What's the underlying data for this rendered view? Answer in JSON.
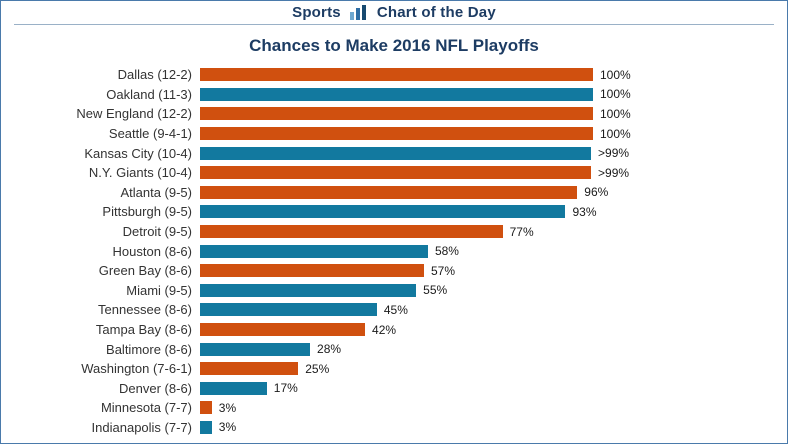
{
  "header": {
    "brand": "Sports",
    "tagline": "Chart of the Day"
  },
  "chart_data": {
    "type": "bar",
    "orientation": "horizontal",
    "title": "Chances to Make 2016 NFL Playoffs",
    "xlabel": "",
    "ylabel": "",
    "xlim": [
      0,
      100
    ],
    "grid": false,
    "legend": "none",
    "colors": {
      "orange": "#d0500f",
      "teal": "#12799f"
    },
    "rows": [
      {
        "label": "Dallas (12-2)",
        "value": 100,
        "display": "100%",
        "color": "orange"
      },
      {
        "label": "Oakland (11-3)",
        "value": 100,
        "display": "100%",
        "color": "teal"
      },
      {
        "label": "New England (12-2)",
        "value": 100,
        "display": "100%",
        "color": "orange"
      },
      {
        "label": "Seattle (9-4-1)",
        "value": 100,
        "display": "100%",
        "color": "orange"
      },
      {
        "label": "Kansas City (10-4)",
        "value": 99.5,
        "display": ">99%",
        "color": "teal"
      },
      {
        "label": "N.Y. Giants (10-4)",
        "value": 99.5,
        "display": ">99%",
        "color": "orange"
      },
      {
        "label": "Atlanta (9-5)",
        "value": 96,
        "display": "96%",
        "color": "orange"
      },
      {
        "label": "Pittsburgh (9-5)",
        "value": 93,
        "display": "93%",
        "color": "teal"
      },
      {
        "label": "Detroit (9-5)",
        "value": 77,
        "display": "77%",
        "color": "orange"
      },
      {
        "label": "Houston (8-6)",
        "value": 58,
        "display": "58%",
        "color": "teal"
      },
      {
        "label": "Green Bay (8-6)",
        "value": 57,
        "display": "57%",
        "color": "orange"
      },
      {
        "label": "Miami (9-5)",
        "value": 55,
        "display": "55%",
        "color": "teal"
      },
      {
        "label": "Tennessee (8-6)",
        "value": 45,
        "display": "45%",
        "color": "teal"
      },
      {
        "label": "Tampa Bay (8-6)",
        "value": 42,
        "display": "42%",
        "color": "orange"
      },
      {
        "label": "Baltimore (8-6)",
        "value": 28,
        "display": "28%",
        "color": "teal"
      },
      {
        "label": "Washington (7-6-1)",
        "value": 25,
        "display": "25%",
        "color": "orange"
      },
      {
        "label": "Denver (8-6)",
        "value": 17,
        "display": "17%",
        "color": "teal"
      },
      {
        "label": "Minnesota (7-7)",
        "value": 3,
        "display": "3%",
        "color": "orange"
      },
      {
        "label": "Indianapolis (7-7)",
        "value": 3,
        "display": "3%",
        "color": "teal"
      }
    ]
  }
}
